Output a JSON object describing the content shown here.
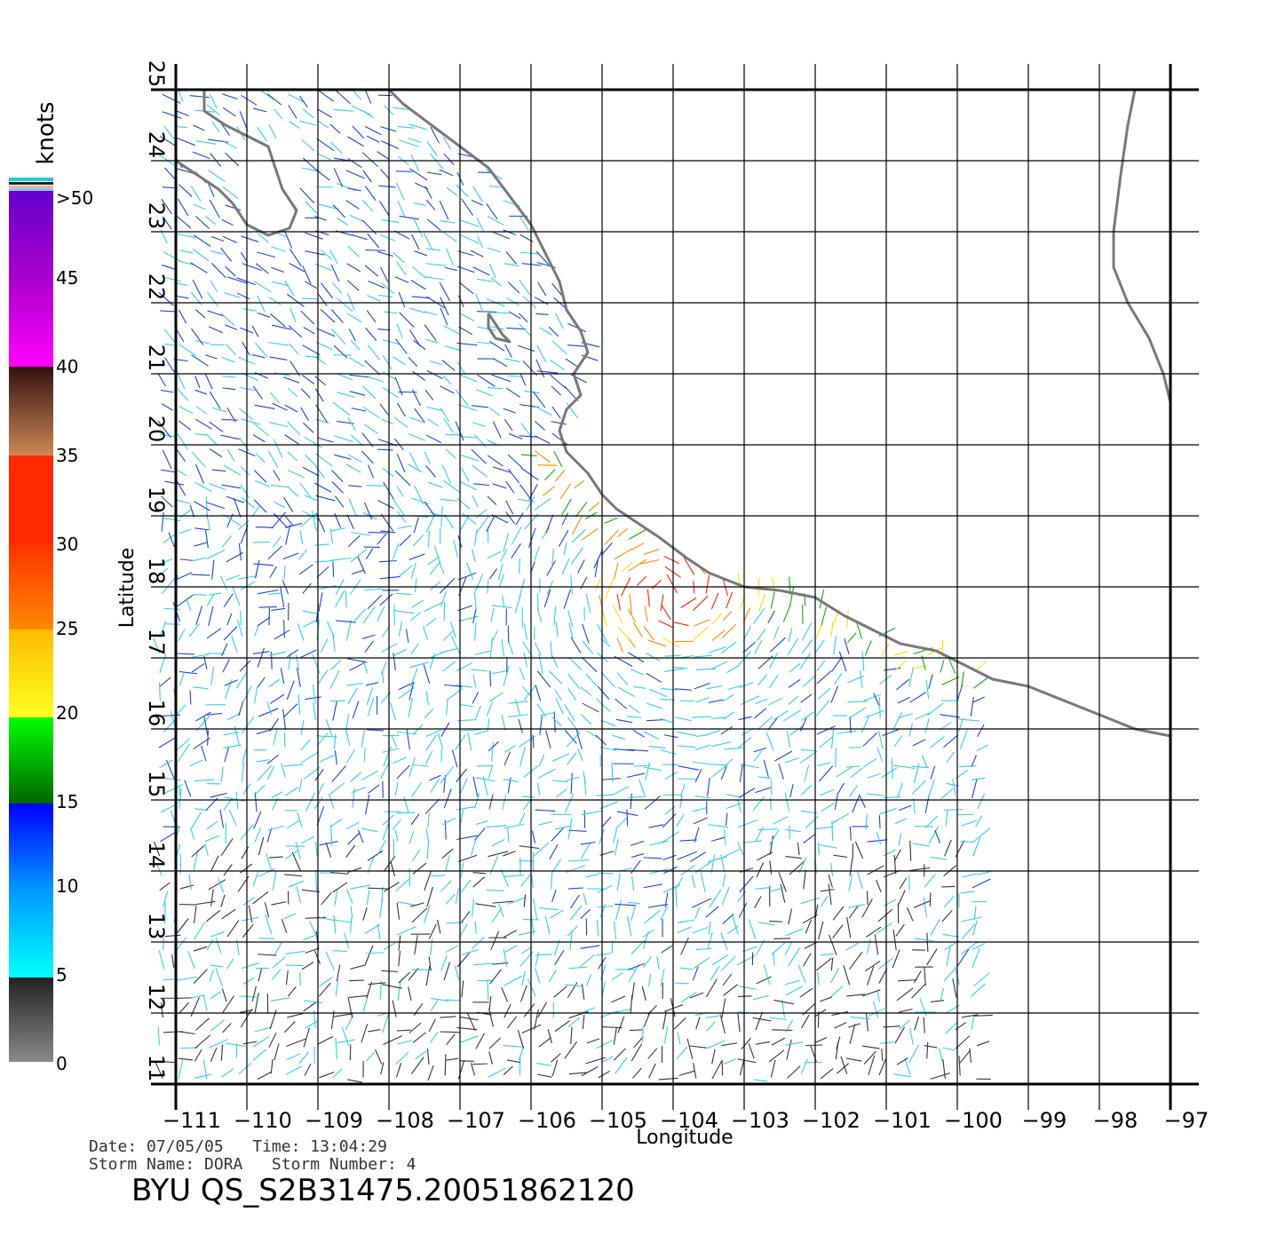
{
  "colorbar": {
    "unit_label": "knots",
    "ticks": [
      "0",
      "5",
      "10",
      "15",
      "20",
      "25",
      "30",
      "35",
      "40",
      "45",
      ">50"
    ]
  },
  "axes": {
    "xlabel": "Longitude",
    "ylabel": "Latitude",
    "x_ticks": [
      "-111",
      "-110",
      "-109",
      "-108",
      "-107",
      "-106",
      "-105",
      "-104",
      "-103",
      "-102",
      "-101",
      "-100",
      "-99",
      "-98",
      "-97"
    ],
    "y_ticks": [
      "11",
      "12",
      "13",
      "14",
      "15",
      "16",
      "17",
      "18",
      "19",
      "20",
      "21",
      "22",
      "23",
      "24",
      "25"
    ]
  },
  "footer": {
    "line1": "Date: 07/05/05   Time: 13:04:29",
    "line2": "Storm Name: DORA   Storm Number: 4",
    "title": "BYU QS_S2B31475.20051862120"
  },
  "chart_data": {
    "type": "map",
    "lon_range": [
      -111,
      -97
    ],
    "lat_range": [
      11,
      25
    ],
    "grid": true,
    "colors": {
      "coastline": "#777777",
      "grid": "#000000",
      "speed_0_5": "#333333",
      "speed_5_10": "#33ccee",
      "speed_10_15": "#1a44cc",
      "speed_15_20": "#11aa11",
      "speed_20_25": "#ffdd00",
      "speed_25_30": "#ff8800",
      "speed_30_35": "#ff2200"
    }
  }
}
